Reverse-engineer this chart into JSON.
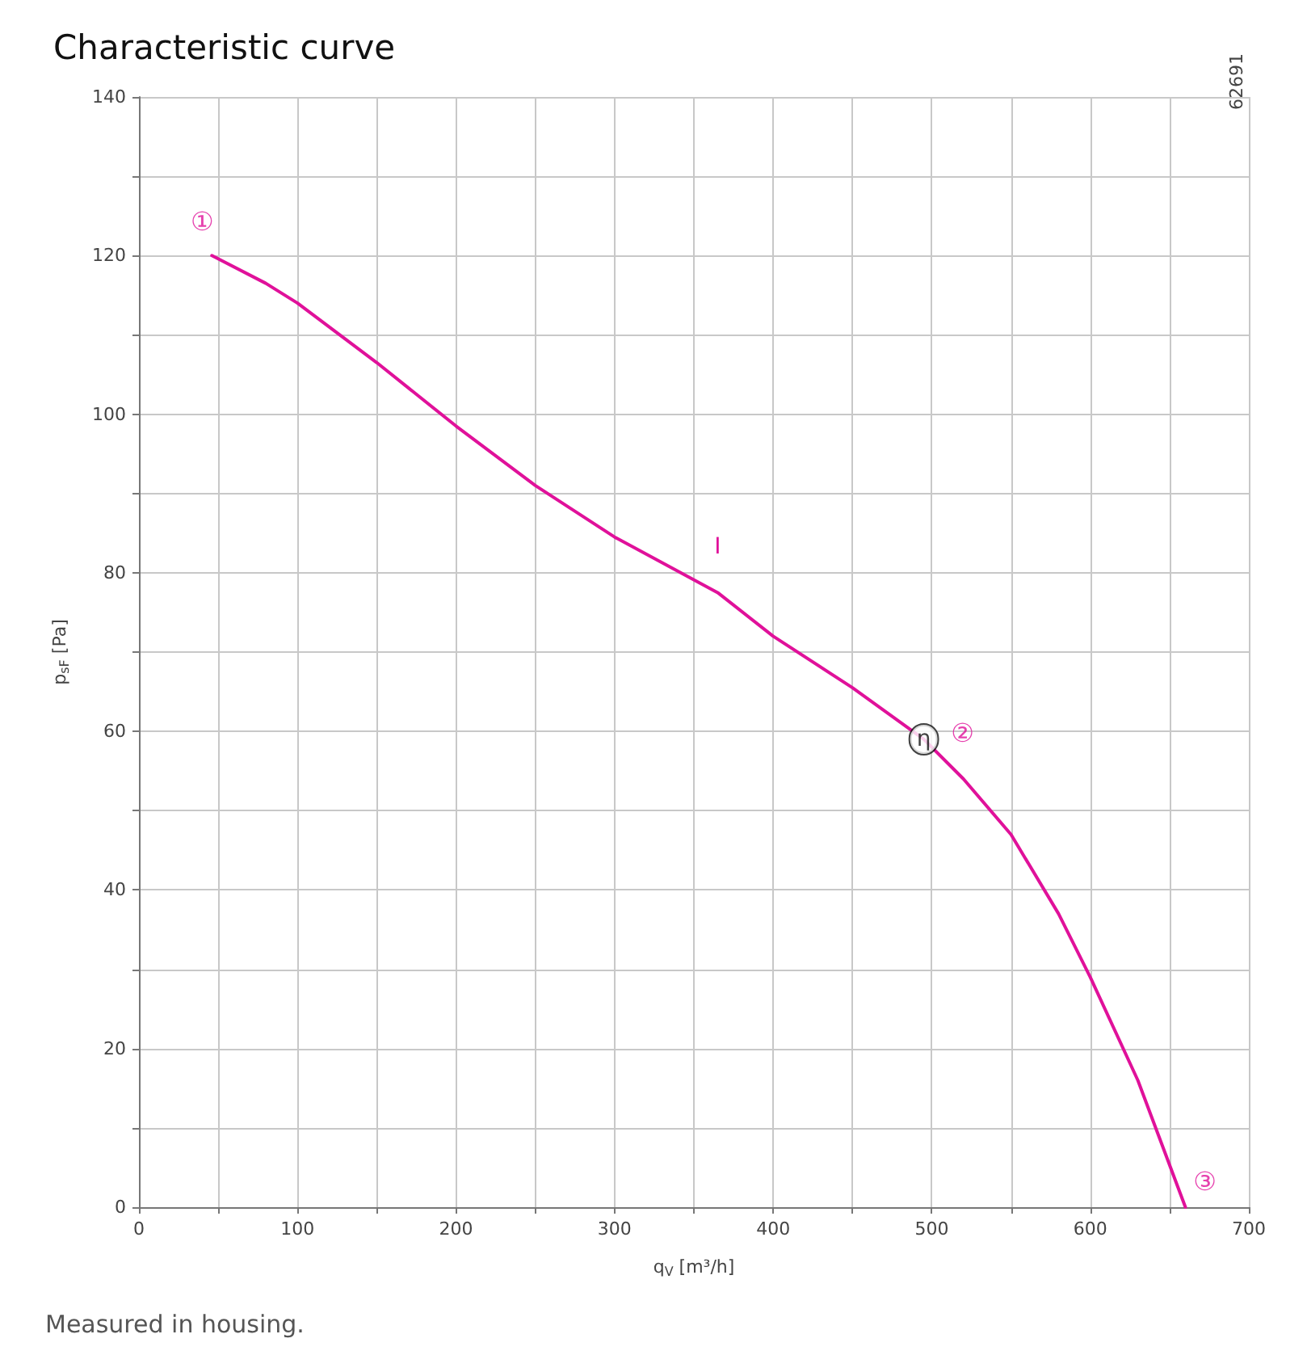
{
  "chart_data": {
    "type": "line",
    "title": "Characteristic curve",
    "xlabel": "q$_{V}$ [m³/h]",
    "ylabel": "p$_{sF}$ [Pa]",
    "x": [
      46,
      80,
      100,
      150,
      200,
      250,
      300,
      365,
      400,
      450,
      495,
      520,
      550,
      580,
      600,
      630,
      660
    ],
    "series": [
      {
        "name": "I",
        "color": "#e0119a",
        "values": [
          120,
          116.5,
          114,
          106.5,
          98.5,
          91,
          84.5,
          77.5,
          72,
          65.5,
          59,
          54,
          47,
          37,
          29,
          16,
          0
        ]
      }
    ],
    "xlim": [
      0,
      700
    ],
    "ylim": [
      0,
      140
    ],
    "xticks": [
      0,
      {
        "value": 50,
        "label": null
      },
      100,
      {
        "value": 150,
        "label": null
      },
      200,
      {
        "value": 250,
        "label": null
      },
      300,
      {
        "value": 350,
        "label": null
      },
      400,
      {
        "value": 450,
        "label": null
      },
      500,
      {
        "value": 550,
        "label": null
      },
      600,
      {
        "value": 650,
        "label": null
      },
      700
    ],
    "yticks": [
      0,
      {
        "value": 10,
        "label": null
      },
      20,
      {
        "value": 30,
        "label": null
      },
      40,
      {
        "value": 50,
        "label": null
      },
      60,
      {
        "value": 70,
        "label": null
      },
      80,
      {
        "value": 90,
        "label": null
      },
      100,
      {
        "value": 110,
        "label": null
      },
      120,
      {
        "value": 130,
        "label": null
      },
      140
    ],
    "grid": true,
    "marker": "none",
    "line_style": "solid",
    "annotations": [
      "Measured in housing.",
      "62691",
      {
        "text": "①",
        "x": 46,
        "y": 120
      },
      {
        "text": "②",
        "x": 495,
        "y": 59
      },
      {
        "text": "③",
        "x": 660,
        "y": 0
      },
      {
        "text": "η",
        "x": 495,
        "y": 59
      }
    ]
  }
}
